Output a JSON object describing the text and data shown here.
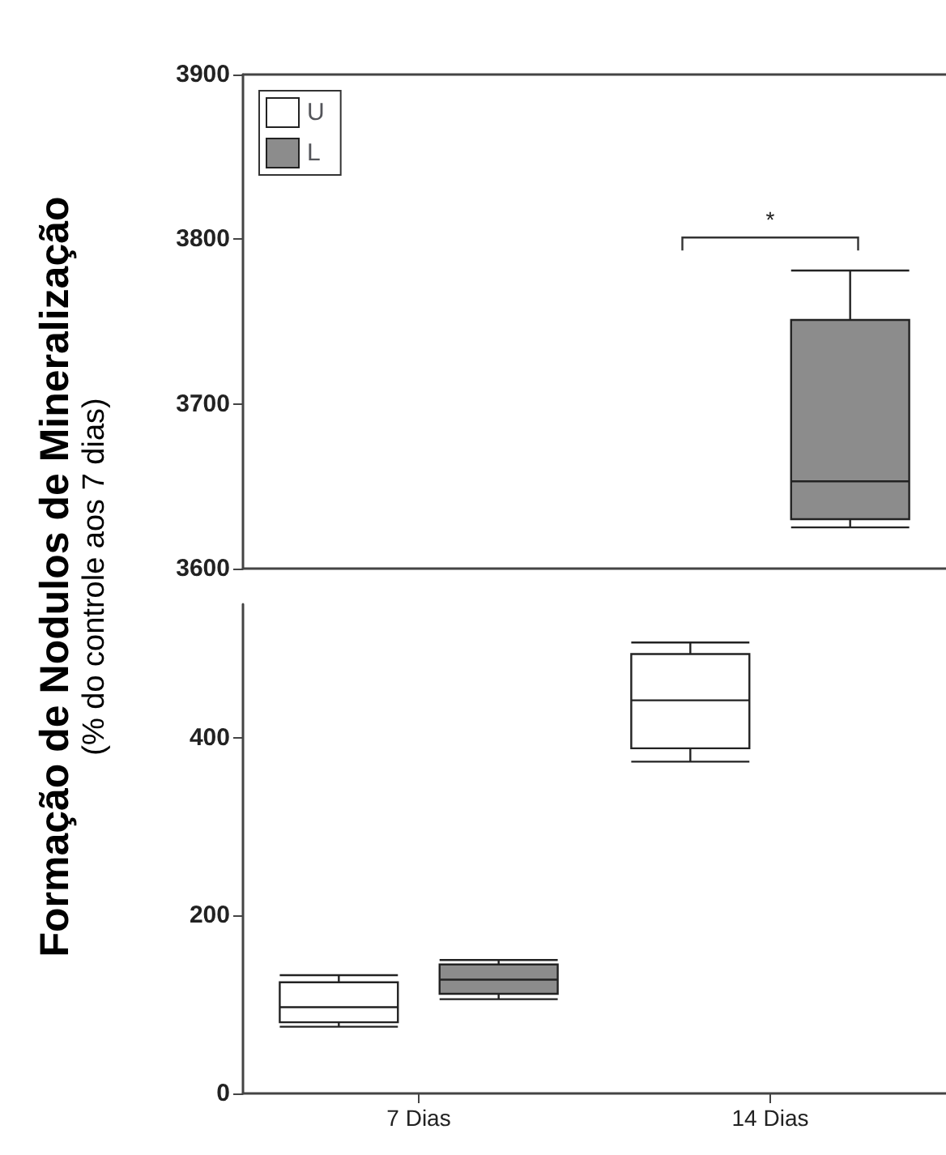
{
  "chart_data": [
    {
      "type": "box",
      "ylabel": "Formação de Nodulos de Mineralização",
      "subtitle": "(% do controle aos 7 dias)",
      "categories": [
        null,
        null
      ],
      "ylim": [
        3600,
        3900
      ],
      "yticks": [
        3600,
        3700,
        3800,
        3900
      ],
      "tick_labels": "y",
      "legend": "top left",
      "grid": false,
      "annotations": [
        "*"
      ],
      "series": [
        {
          "name": "U",
          "color": "#ffffff",
          "boxes": [
            null,
            null
          ]
        },
        {
          "name": "L",
          "color": "#8c8c8c",
          "boxes": [
            null,
            {
              "low": 3625,
              "q1": 3630,
              "median": 3653,
              "q3": 3751,
              "high": 3781
            }
          ]
        }
      ]
    },
    {
      "type": "box",
      "categories": [
        "7 Dias",
        "14 Dias"
      ],
      "ylim": [
        0,
        550
      ],
      "yticks": [
        0,
        200,
        400
      ],
      "grid": false,
      "series": [
        {
          "color": "#ffffff",
          "boxes": [
            {
              "low": 75,
              "q1": 80,
              "median": 97,
              "q3": 125,
              "high": 133
            },
            {
              "low": 373,
              "q1": 388,
              "median": 442,
              "q3": 494,
              "high": 507
            }
          ]
        },
        {
          "color": "#8c8c8c",
          "boxes": [
            {
              "low": 106,
              "q1": 112,
              "median": 128,
              "q3": 145,
              "high": 150
            },
            null
          ]
        }
      ]
    }
  ]
}
